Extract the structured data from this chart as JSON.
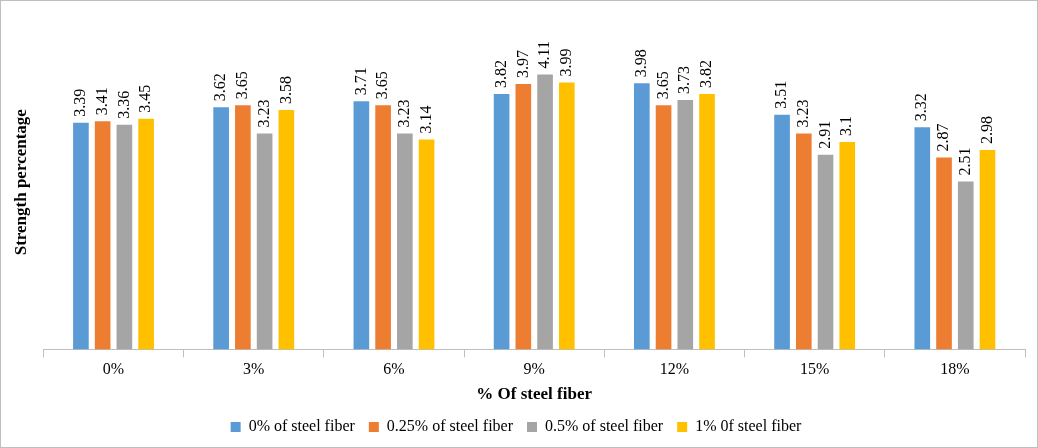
{
  "chart_data": {
    "type": "bar",
    "xlabel": "% Of steel fiber",
    "ylabel": "Strength percentage",
    "categories": [
      "0%",
      "3%",
      "6%",
      "9%",
      "12%",
      "15%",
      "18%"
    ],
    "series": [
      {
        "name": "0% of steel fiber",
        "color": "#5b9bd5",
        "values": [
          3.39,
          3.62,
          3.71,
          3.82,
          3.98,
          3.51,
          3.32
        ]
      },
      {
        "name": "0.25% of steel fiber",
        "color": "#ed7d31",
        "values": [
          3.41,
          3.65,
          3.65,
          3.97,
          3.65,
          3.23,
          2.87
        ]
      },
      {
        "name": "0.5% of steel fiber",
        "color": "#a5a5a5",
        "values": [
          3.36,
          3.23,
          3.23,
          4.11,
          3.73,
          2.91,
          2.51
        ]
      },
      {
        "name": "1% 0f steel fiber",
        "color": "#ffc000",
        "values": [
          3.45,
          3.58,
          3.14,
          3.99,
          3.82,
          3.1,
          2.98
        ]
      }
    ],
    "data_labels": true,
    "grid": false,
    "legend": "bottom"
  }
}
